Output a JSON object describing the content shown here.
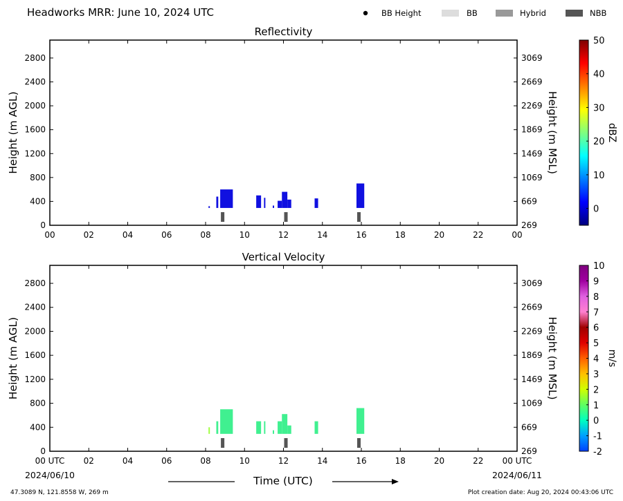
{
  "header": {
    "title": "Headworks MRR:  June 10, 2024 UTC",
    "legend": [
      {
        "label": "BB Height",
        "symbol": "dot",
        "color": "#000000"
      },
      {
        "label": "BB",
        "symbol": "box",
        "color": "#dddddd"
      },
      {
        "label": "Hybrid",
        "symbol": "box",
        "color": "#999999"
      },
      {
        "label": "NBB",
        "symbol": "box",
        "color": "#555555"
      }
    ]
  },
  "footer": {
    "xlabel": "Time (UTC)",
    "date_start": "2024/06/10",
    "date_end": "2024/06/11",
    "location": "47.3089 N, 121.8558 W, 269 m",
    "creation": "Plot creation date: Aug 20, 2024 00:43:06 UTC"
  },
  "chart_data": [
    {
      "type": "heatmap",
      "title": "Reflectivity",
      "ylabel": "Height (m AGL)",
      "y2label": "Height (m MSL)",
      "colorbar_label": "dBZ",
      "x_range": [
        0,
        24
      ],
      "ylim": [
        0,
        3100
      ],
      "x_ticks": [
        "00",
        "02",
        "04",
        "06",
        "08",
        "10",
        "12",
        "14",
        "16",
        "18",
        "20",
        "22",
        "00"
      ],
      "y_ticks": [
        0,
        400,
        800,
        1200,
        1600,
        2000,
        2400,
        2800
      ],
      "y2_ticks": [
        "269",
        "669",
        "1069",
        "1469",
        "1869",
        "2269",
        "2669",
        "3069"
      ],
      "colorbar": {
        "min": -5,
        "max": 50,
        "ticks": [
          0,
          10,
          20,
          30,
          40,
          50
        ],
        "colors": [
          "#00007f",
          "#0000ff",
          "#007fff",
          "#00ffff",
          "#7fff7f",
          "#ffff00",
          "#ff7f00",
          "#ff0000",
          "#7f0000"
        ]
      },
      "echo_color": "#1010e0",
      "echoes": [
        {
          "t0": 8.15,
          "t1": 8.22,
          "h0": 290,
          "h1": 320
        },
        {
          "t0": 8.55,
          "t1": 8.65,
          "h0": 290,
          "h1": 480
        },
        {
          "t0": 8.75,
          "t1": 9.4,
          "h0": 290,
          "h1": 600
        },
        {
          "t0": 10.6,
          "t1": 10.85,
          "h0": 290,
          "h1": 500
        },
        {
          "t0": 11.0,
          "t1": 11.07,
          "h0": 290,
          "h1": 460
        },
        {
          "t0": 11.45,
          "t1": 11.52,
          "h0": 290,
          "h1": 330
        },
        {
          "t0": 11.7,
          "t1": 11.92,
          "h0": 290,
          "h1": 410
        },
        {
          "t0": 11.92,
          "t1": 12.2,
          "h0": 290,
          "h1": 560
        },
        {
          "t0": 12.2,
          "t1": 12.4,
          "h0": 290,
          "h1": 430
        },
        {
          "t0": 13.6,
          "t1": 13.78,
          "h0": 290,
          "h1": 450
        },
        {
          "t0": 15.75,
          "t1": 16.15,
          "h0": 290,
          "h1": 700
        }
      ],
      "bright_band": [
        {
          "t0": 8.75,
          "t1": 9.0,
          "class": "NBB"
        },
        {
          "t0": 12.0,
          "t1": 12.25,
          "class": "NBB"
        },
        {
          "t0": 15.75,
          "t1": 16.0,
          "class": "NBB"
        }
      ]
    },
    {
      "type": "heatmap",
      "title": "Vertical Velocity",
      "ylabel": "Height (m AGL)",
      "y2label": "Height (m MSL)",
      "colorbar_label": "m/s",
      "x_range": [
        0,
        24
      ],
      "ylim": [
        0,
        3100
      ],
      "x_ticks": [
        "00 UTC",
        "02",
        "04",
        "06",
        "08",
        "10",
        "12",
        "14",
        "16",
        "18",
        "20",
        "22",
        "00 UTC"
      ],
      "y_ticks": [
        0,
        400,
        800,
        1200,
        1600,
        2000,
        2400,
        2800
      ],
      "y2_ticks": [
        "269",
        "669",
        "1069",
        "1469",
        "1869",
        "2269",
        "2669",
        "3069"
      ],
      "colorbar": {
        "min": -2,
        "max": 10,
        "ticks": [
          -2,
          -1,
          0,
          1,
          2,
          3,
          4,
          5,
          6,
          7,
          8,
          9,
          10
        ],
        "colors": [
          "#0040ff",
          "#00a0ff",
          "#00ffc0",
          "#60ff60",
          "#d0ff00",
          "#ffc000",
          "#ff6000",
          "#e00000",
          "#a00000",
          "#ff80d0",
          "#e060e0",
          "#a000a0",
          "#800080"
        ]
      },
      "echo_color": "#40f090",
      "echoes": [
        {
          "t0": 8.15,
          "t1": 8.22,
          "h0": 290,
          "h1": 400,
          "color": "#a0ff40"
        },
        {
          "t0": 8.55,
          "t1": 8.65,
          "h0": 290,
          "h1": 500
        },
        {
          "t0": 8.75,
          "t1": 9.4,
          "h0": 290,
          "h1": 700
        },
        {
          "t0": 10.6,
          "t1": 10.85,
          "h0": 290,
          "h1": 500
        },
        {
          "t0": 11.0,
          "t1": 11.07,
          "h0": 290,
          "h1": 500
        },
        {
          "t0": 11.45,
          "t1": 11.52,
          "h0": 290,
          "h1": 350
        },
        {
          "t0": 11.7,
          "t1": 11.92,
          "h0": 290,
          "h1": 500
        },
        {
          "t0": 11.92,
          "t1": 12.2,
          "h0": 290,
          "h1": 620
        },
        {
          "t0": 12.2,
          "t1": 12.4,
          "h0": 290,
          "h1": 430
        },
        {
          "t0": 13.6,
          "t1": 13.78,
          "h0": 290,
          "h1": 500
        },
        {
          "t0": 15.75,
          "t1": 16.15,
          "h0": 290,
          "h1": 720
        }
      ],
      "bright_band": [
        {
          "t0": 8.75,
          "t1": 9.0,
          "class": "NBB"
        },
        {
          "t0": 12.0,
          "t1": 12.25,
          "class": "NBB"
        },
        {
          "t0": 15.75,
          "t1": 16.0,
          "class": "NBB"
        }
      ]
    }
  ]
}
